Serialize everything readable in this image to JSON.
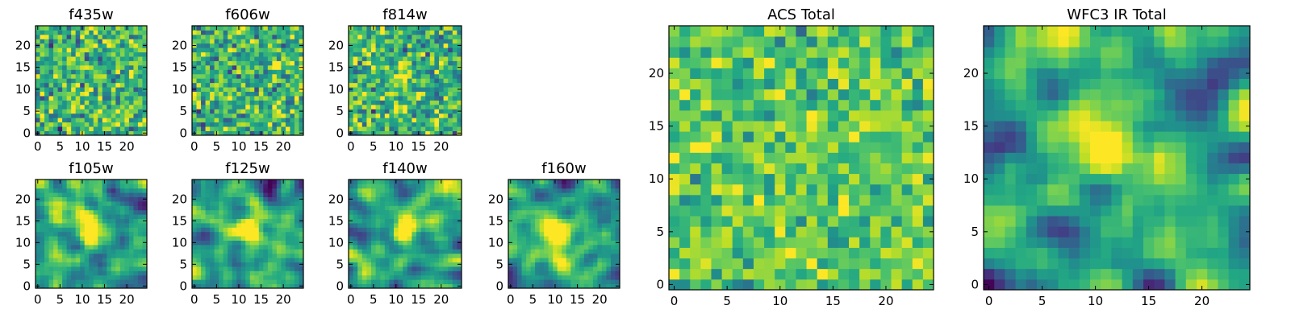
{
  "chart_data": {
    "type": "heatmap",
    "colormap": "viridis",
    "grid": false,
    "note_values": "pixel values approximated from the image's colours; 25x25 cells, 0 = dark purple, 1 = bright yellow",
    "panels": [
      {
        "title": "f435w",
        "xticks": [
          "0",
          "5",
          "10",
          "15",
          "20"
        ],
        "yticks": [
          "0",
          "5",
          "10",
          "15",
          "20"
        ],
        "xlim": [
          -0.5,
          24.5
        ],
        "ylim": [
          -0.5,
          24.5
        ],
        "pattern": "noise",
        "blob": null,
        "seed": 11
      },
      {
        "title": "f606w",
        "xticks": [
          "0",
          "5",
          "10",
          "15",
          "20"
        ],
        "yticks": [
          "0",
          "5",
          "10",
          "15",
          "20"
        ],
        "xlim": [
          -0.5,
          24.5
        ],
        "ylim": [
          -0.5,
          24.5
        ],
        "pattern": "noise",
        "blob": null,
        "seed": 23
      },
      {
        "title": "f814w",
        "xticks": [
          "0",
          "5",
          "10",
          "15",
          "20"
        ],
        "yticks": [
          "0",
          "5",
          "10",
          "15",
          "20"
        ],
        "xlim": [
          -0.5,
          24.5
        ],
        "ylim": [
          -0.5,
          24.5
        ],
        "pattern": "noise",
        "blob": {
          "x": 11,
          "y": 13,
          "amp": 0.35,
          "sigma": 1.5
        },
        "seed": 37
      },
      {
        "title": "f105w",
        "xticks": [
          "0",
          "5",
          "10",
          "15",
          "20"
        ],
        "yticks": [
          "0",
          "5",
          "10",
          "15",
          "20"
        ],
        "xlim": [
          -0.5,
          24.5
        ],
        "ylim": [
          -0.5,
          24.5
        ],
        "pattern": "smooth",
        "blob": {
          "x": 11,
          "y": 13,
          "amp": 0.45,
          "sigma": 2.2
        },
        "seed": 41
      },
      {
        "title": "f125w",
        "xticks": [
          "0",
          "5",
          "10",
          "15",
          "20"
        ],
        "yticks": [
          "0",
          "5",
          "10",
          "15",
          "20"
        ],
        "xlim": [
          -0.5,
          24.5
        ],
        "ylim": [
          -0.5,
          24.5
        ],
        "pattern": "smooth",
        "blob": {
          "x": 12,
          "y": 13,
          "amp": 0.45,
          "sigma": 2.2
        },
        "seed": 53
      },
      {
        "title": "f140w",
        "xticks": [
          "0",
          "5",
          "10",
          "15",
          "20"
        ],
        "yticks": [
          "0",
          "5",
          "10",
          "15",
          "20"
        ],
        "xlim": [
          -0.5,
          24.5
        ],
        "ylim": [
          -0.5,
          24.5
        ],
        "pattern": "smooth",
        "blob": {
          "x": 12,
          "y": 13,
          "amp": 0.5,
          "sigma": 2.4
        },
        "seed": 67
      },
      {
        "title": "f160w",
        "xticks": [
          "0",
          "5",
          "10",
          "15",
          "20"
        ],
        "yticks": [
          "0",
          "5",
          "10",
          "15",
          "20"
        ],
        "xlim": [
          -0.5,
          24.5
        ],
        "ylim": [
          -0.5,
          24.5
        ],
        "pattern": "smooth",
        "blob": {
          "x": 11,
          "y": 13,
          "amp": 0.55,
          "sigma": 2.2
        },
        "seed": 79
      },
      {
        "title": "ACS Total",
        "xticks": [
          "0",
          "5",
          "10",
          "15",
          "20"
        ],
        "yticks": [
          "0",
          "5",
          "10",
          "15",
          "20"
        ],
        "xlim": [
          -0.5,
          24.5
        ],
        "ylim": [
          -0.5,
          24.5
        ],
        "pattern": "noise_mild",
        "blob": null,
        "seed": 97
      },
      {
        "title": "WFC3 IR Total",
        "xticks": [
          "0",
          "5",
          "10",
          "15",
          "20"
        ],
        "yticks": [
          "0",
          "5",
          "10",
          "15",
          "20"
        ],
        "xlim": [
          -0.5,
          24.5
        ],
        "ylim": [
          -0.5,
          24.5
        ],
        "pattern": "smooth",
        "blob": {
          "x": 11.5,
          "y": 13,
          "amp": 0.55,
          "sigma": 2.3
        },
        "seed": 113
      }
    ]
  }
}
